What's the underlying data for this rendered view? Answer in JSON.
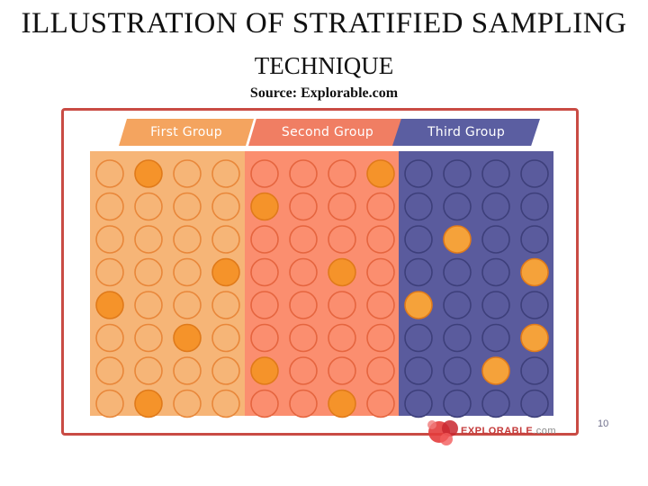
{
  "slide": {
    "title_line1": "ILLUSTRATION OF STRATIFIED SAMPLING",
    "title_line2": "TECHNIQUE",
    "source": "Source: Explorable.com",
    "page_number": "10"
  },
  "groups": [
    {
      "label": "First Group",
      "color": "#f6b577",
      "selected_color": "#f5932a",
      "outline": "#e8873a",
      "selected": [
        [
          0,
          1
        ],
        [
          3,
          3
        ],
        [
          4,
          0
        ],
        [
          5,
          2
        ],
        [
          7,
          1
        ]
      ]
    },
    {
      "label": "Second Group",
      "color": "#fb8e6f",
      "selected_color": "#f5932a",
      "outline": "#e5653f",
      "selected": [
        [
          0,
          3
        ],
        [
          1,
          0
        ],
        [
          3,
          2
        ],
        [
          6,
          0
        ],
        [
          7,
          2
        ]
      ]
    },
    {
      "label": "Third Group",
      "color": "#5a5b9d",
      "selected_color": "#f5a23a",
      "outline": "#3d3f7a",
      "selected": [
        [
          2,
          1
        ],
        [
          3,
          3
        ],
        [
          4,
          0
        ],
        [
          5,
          3
        ],
        [
          6,
          2
        ]
      ]
    }
  ],
  "grid": {
    "rows": 8,
    "cols_per_group": 4
  },
  "logo": {
    "brand": "EXPLORABLE",
    "suffix": ".com"
  }
}
